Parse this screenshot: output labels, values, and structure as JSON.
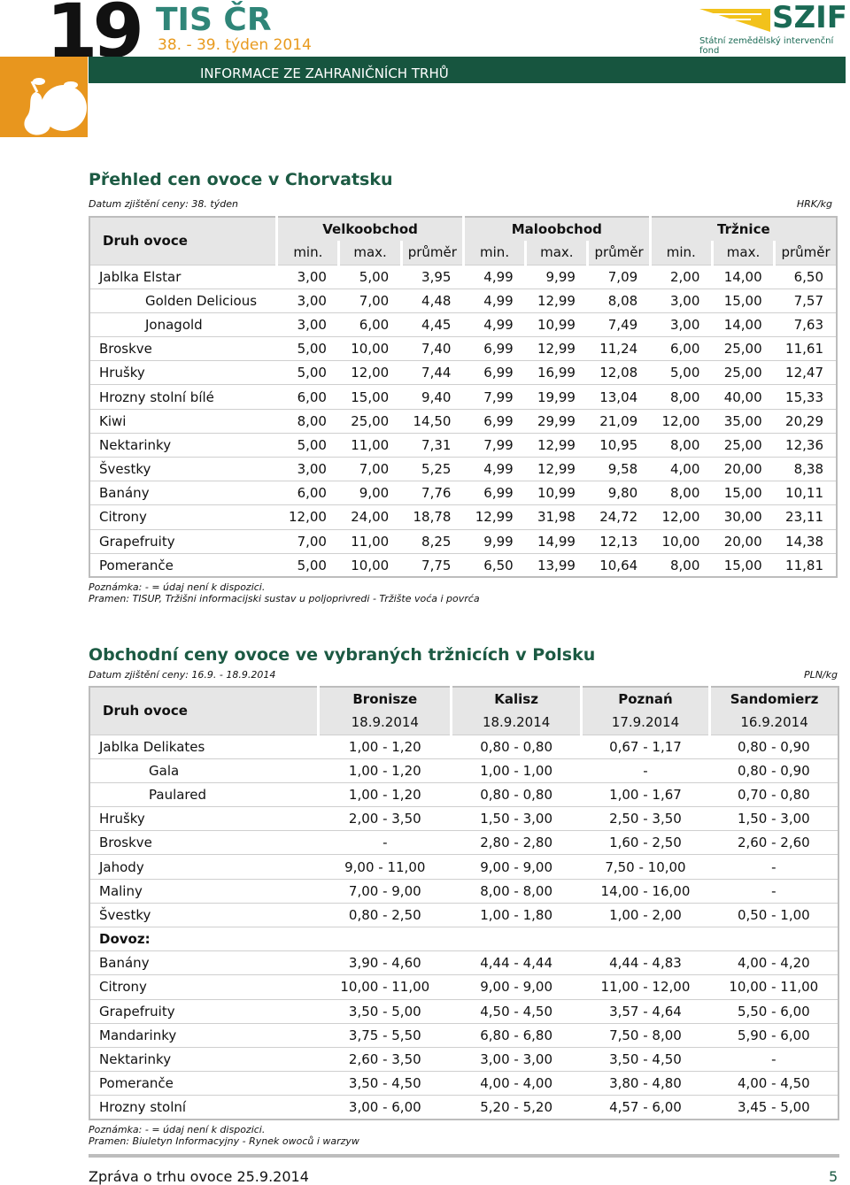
{
  "header": {
    "number": "19",
    "title": "TIS ČR",
    "week": "38. - 39. týden 2014",
    "subtitle": "INFORMACE ZE ZAHRANIČNÍCH TRHŮ",
    "logo": "SZIF",
    "logo_sub": "Státní zemědělský intervenční fond"
  },
  "table1": {
    "title": "Přehled cen ovoce v Chorvatsku",
    "date": "Datum zjištění ceny: 38. týden",
    "unit": "HRK/kg",
    "row_header": "Druh ovoce",
    "groups": [
      "Velkoobchod",
      "Maloobchod",
      "Tržnice"
    ],
    "subheaders": [
      "min.",
      "max.",
      "průměr",
      "min.",
      "max.",
      "průměr",
      "min.",
      "max.",
      "průměr"
    ],
    "rows": [
      {
        "label": "Jablka Elstar",
        "values": [
          "3,00",
          "5,00",
          "3,95",
          "4,99",
          "9,99",
          "7,09",
          "2,00",
          "14,00",
          "6,50"
        ]
      },
      {
        "label": "Golden Delicious",
        "indent": true,
        "values": [
          "3,00",
          "7,00",
          "4,48",
          "4,99",
          "12,99",
          "8,08",
          "3,00",
          "15,00",
          "7,57"
        ]
      },
      {
        "label": "Jonagold",
        "indent": true,
        "values": [
          "3,00",
          "6,00",
          "4,45",
          "4,99",
          "10,99",
          "7,49",
          "3,00",
          "14,00",
          "7,63"
        ]
      },
      {
        "label": "Broskve",
        "values": [
          "5,00",
          "10,00",
          "7,40",
          "6,99",
          "12,99",
          "11,24",
          "6,00",
          "25,00",
          "11,61"
        ]
      },
      {
        "label": "Hrušky",
        "values": [
          "5,00",
          "12,00",
          "7,44",
          "6,99",
          "16,99",
          "12,08",
          "5,00",
          "25,00",
          "12,47"
        ]
      },
      {
        "label": "Hrozny stolní bílé",
        "values": [
          "6,00",
          "15,00",
          "9,40",
          "7,99",
          "19,99",
          "13,04",
          "8,00",
          "40,00",
          "15,33"
        ]
      },
      {
        "label": "Kiwi",
        "values": [
          "8,00",
          "25,00",
          "14,50",
          "6,99",
          "29,99",
          "21,09",
          "12,00",
          "35,00",
          "20,29"
        ]
      },
      {
        "label": "Nektarinky",
        "values": [
          "5,00",
          "11,00",
          "7,31",
          "7,99",
          "12,99",
          "10,95",
          "8,00",
          "25,00",
          "12,36"
        ]
      },
      {
        "label": "Švestky",
        "values": [
          "3,00",
          "7,00",
          "5,25",
          "4,99",
          "12,99",
          "9,58",
          "4,00",
          "20,00",
          "8,38"
        ]
      },
      {
        "label": "Banány",
        "values": [
          "6,00",
          "9,00",
          "7,76",
          "6,99",
          "10,99",
          "9,80",
          "8,00",
          "15,00",
          "10,11"
        ]
      },
      {
        "label": "Citrony",
        "values": [
          "12,00",
          "24,00",
          "18,78",
          "12,99",
          "31,98",
          "24,72",
          "12,00",
          "30,00",
          "23,11"
        ]
      },
      {
        "label": "Grapefruity",
        "values": [
          "7,00",
          "11,00",
          "8,25",
          "9,99",
          "14,99",
          "12,13",
          "10,00",
          "20,00",
          "14,38"
        ]
      },
      {
        "label": "Pomeranče",
        "values": [
          "5,00",
          "10,00",
          "7,75",
          "6,50",
          "13,99",
          "10,64",
          "8,00",
          "15,00",
          "11,81"
        ]
      }
    ],
    "note": "Poznámka: - = údaj není k dispozici.",
    "source": "Pramen: TISUP, Tržišni informacijski sustav u poljoprivredi - Tržište voća i povrća"
  },
  "table2": {
    "title": "Obchodní ceny ovoce ve vybraných tržnicích v Polsku",
    "date": "Datum zjištění ceny: 16.9. - 18.9.2014",
    "unit": "PLN/kg",
    "row_header": "Druh ovoce",
    "markets": [
      {
        "name": "Bronisze",
        "date": "18.9.2014"
      },
      {
        "name": "Kalisz",
        "date": "18.9.2014"
      },
      {
        "name": "Poznań",
        "date": "17.9.2014"
      },
      {
        "name": "Sandomierz",
        "date": "16.9.2014"
      }
    ],
    "rows": [
      {
        "label": "Jablka Delikates",
        "values": [
          "1,00 - 1,20",
          "0,80 - 0,80",
          "0,67 - 1,17",
          "0,80 - 0,90"
        ]
      },
      {
        "label": "Gala",
        "indent": true,
        "values": [
          "1,00 - 1,20",
          "1,00 - 1,00",
          "-",
          "0,80 - 0,90"
        ]
      },
      {
        "label": "Paulared",
        "indent": true,
        "values": [
          "1,00 - 1,20",
          "0,80 - 0,80",
          "1,00 - 1,67",
          "0,70 - 0,80"
        ]
      },
      {
        "label": "Hrušky",
        "values": [
          "2,00 - 3,50",
          "1,50 - 3,00",
          "2,50 - 3,50",
          "1,50 - 3,00"
        ]
      },
      {
        "label": "Broskve",
        "values": [
          "-",
          "2,80 - 2,80",
          "1,60 - 2,50",
          "2,60 - 2,60"
        ]
      },
      {
        "label": "Jahody",
        "values": [
          "9,00 - 11,00",
          "9,00 - 9,00",
          "7,50 - 10,00",
          "-"
        ]
      },
      {
        "label": "Maliny",
        "values": [
          "7,00 - 9,00",
          "8,00 - 8,00",
          "14,00 - 16,00",
          "-"
        ]
      },
      {
        "label": "Švestky",
        "values": [
          "0,80 - 2,50",
          "1,00 - 1,80",
          "1,00 - 2,00",
          "0,50 - 1,00"
        ]
      },
      {
        "label": "Dovoz:",
        "heading": true
      },
      {
        "label": "Banány",
        "values": [
          "3,90 - 4,60",
          "4,44 - 4,44",
          "4,44 - 4,83",
          "4,00 - 4,20"
        ]
      },
      {
        "label": "Citrony",
        "values": [
          "10,00 - 11,00",
          "9,00 - 9,00",
          "11,00 - 12,00",
          "10,00 - 11,00"
        ]
      },
      {
        "label": "Grapefruity",
        "values": [
          "3,50 - 5,00",
          "4,50 - 4,50",
          "3,57 - 4,64",
          "5,50 - 6,00"
        ]
      },
      {
        "label": "Mandarinky",
        "values": [
          "3,75 - 5,50",
          "6,80 - 6,80",
          "7,50 - 8,00",
          "5,90 - 6,00"
        ]
      },
      {
        "label": "Nektarinky",
        "values": [
          "2,60 - 3,50",
          "3,00 - 3,00",
          "3,50 - 4,50",
          "-"
        ]
      },
      {
        "label": "Pomeranče",
        "values": [
          "3,50 - 4,50",
          "4,00 - 4,00",
          "3,80 - 4,80",
          "4,00 - 4,50"
        ]
      },
      {
        "label": "Hrozny stolní",
        "values": [
          "3,00 - 6,00",
          "5,20 - 5,20",
          "4,57 - 6,00",
          "3,45 - 5,00"
        ]
      }
    ],
    "note": "Poznámka: - = údaj není k dispozici.",
    "source": "Pramen: Biuletyn  Informacyjny - Rynek owoců i warzyw"
  },
  "footer": {
    "text": "Zpráva o trhu ovoce 25.9.2014",
    "page": "5"
  }
}
